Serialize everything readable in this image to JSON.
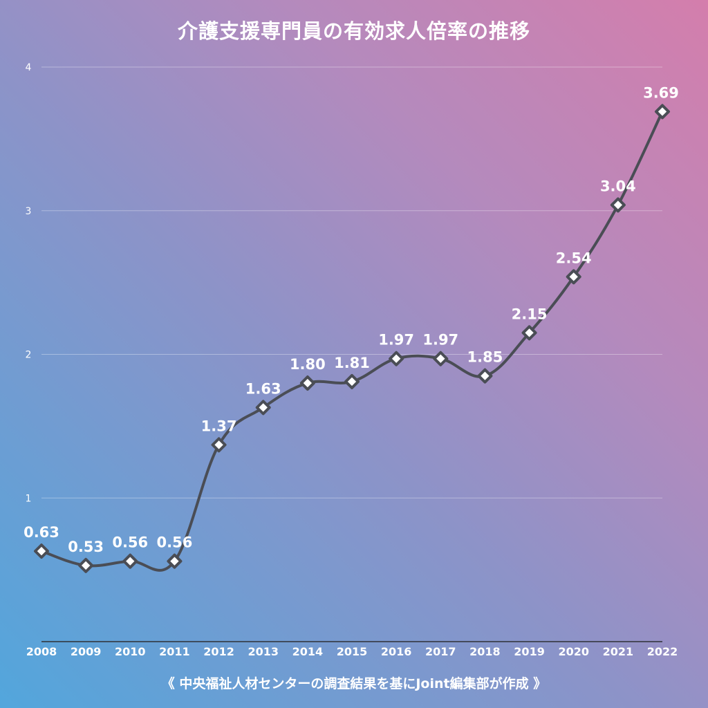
{
  "chart_data": {
    "type": "line",
    "title": "介護支援専門員の有効求人倍率の推移",
    "source": "《 中央福祉人材センターの調査結果を基にJoint編集部が作成 》",
    "categories": [
      "2008",
      "2009",
      "2010",
      "2011",
      "2012",
      "2013",
      "2014",
      "2015",
      "2016",
      "2017",
      "2018",
      "2019",
      "2020",
      "2021",
      "2022"
    ],
    "values": [
      0.63,
      0.53,
      0.56,
      0.56,
      1.37,
      1.63,
      1.8,
      1.81,
      1.97,
      1.97,
      1.85,
      2.15,
      2.54,
      3.04,
      3.69
    ],
    "data_labels": [
      "0.63",
      "0.53",
      "0.56",
      "0.56",
      "1.37",
      "1.63",
      "1.80",
      "1.81",
      "1.97",
      "1.97",
      "1.85",
      "2.15",
      "2.54",
      "3.04",
      "3.69"
    ],
    "y_ticks": [
      1,
      2,
      3,
      4
    ],
    "ylim": [
      0,
      4
    ],
    "xlabel": "",
    "ylabel": "",
    "grid": true,
    "line_color": "#4a4d55",
    "marker": "diamond",
    "marker_fill": "#ffffff"
  }
}
